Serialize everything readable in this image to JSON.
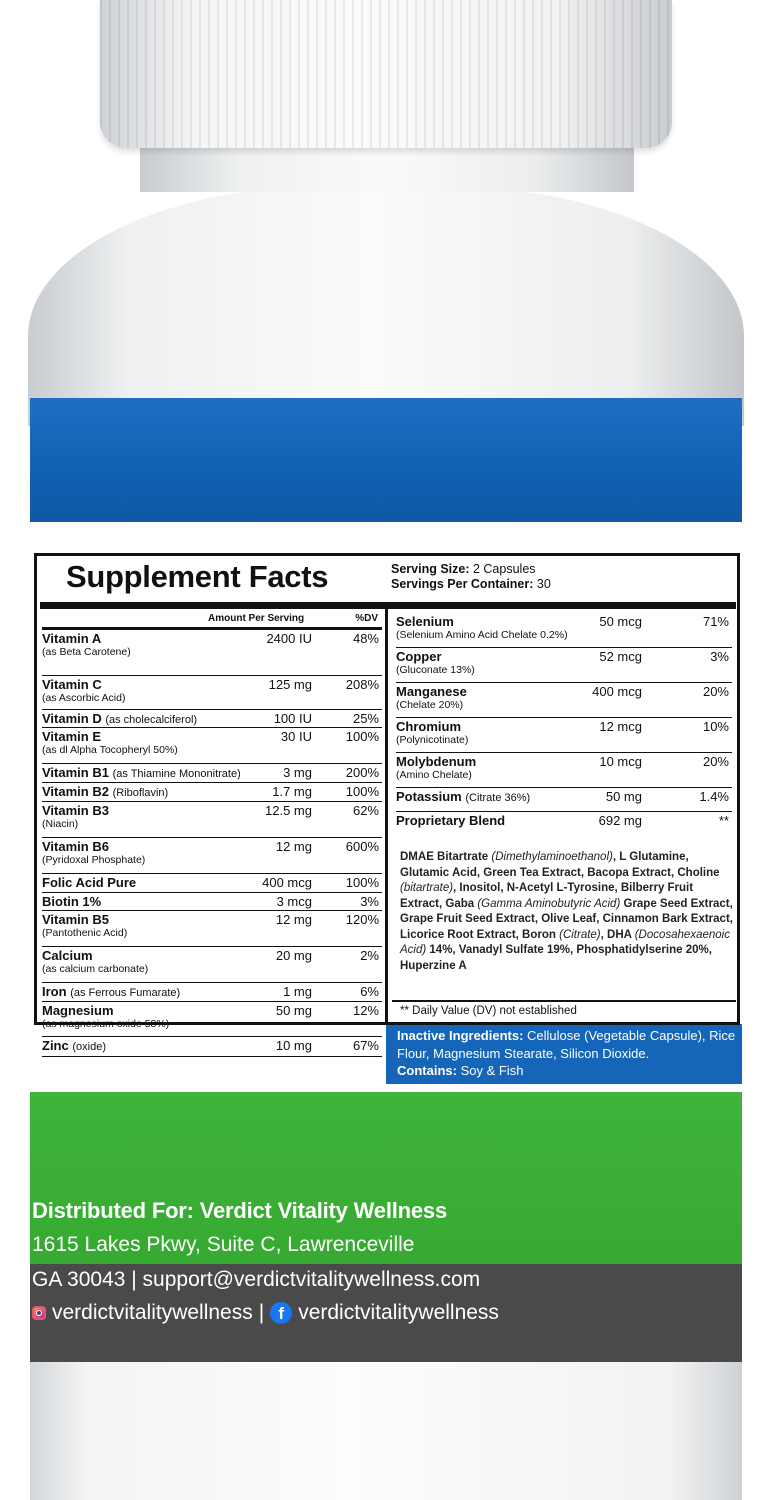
{
  "colors": {
    "blue_band": "#1565b8",
    "green_band": "#3fb43a",
    "dark_band": "#4a4a4a",
    "facebook_blue": "#1877f2"
  },
  "facts": {
    "title": "Supplement Facts",
    "serving_size_label": "Serving Size:",
    "serving_size": "2 Capsules",
    "servings_per_container_label": "Servings Per Container:",
    "servings_per_container": "30",
    "header_amount": "Amount Per Serving",
    "header_dv": "%DV",
    "left_rows": [
      {
        "name": "Vitamin A",
        "inline": "",
        "sub": "(as Beta Carotene)",
        "amount": "2400 IU",
        "dv": "48%"
      },
      {
        "name": "Vitamin C",
        "inline": "",
        "sub": "(as Ascorbic Acid)",
        "amount": "125 mg",
        "dv": "208%"
      },
      {
        "name": "Vitamin D",
        "inline": "(as cholecalciferol)",
        "sub": "",
        "amount": "100 IU",
        "dv": "25%"
      },
      {
        "name": "Vitamin E",
        "inline": "",
        "sub": "(as dl Alpha Tocopheryl 50%)",
        "amount": "30 IU",
        "dv": "100%"
      },
      {
        "name": "Vitamin B1",
        "inline": "(as Thiamine Mononitrate)",
        "sub": "",
        "amount": "3 mg",
        "dv": "200%"
      },
      {
        "name": "Vitamin B2",
        "inline": "(Riboflavin)",
        "sub": "",
        "amount": "1.7 mg",
        "dv": "100%"
      },
      {
        "name": "Vitamin B3",
        "inline": "",
        "sub": "(Niacin)",
        "amount": "12.5 mg",
        "dv": "62%"
      },
      {
        "name": "Vitamin B6",
        "inline": "",
        "sub": "(Pyridoxal Phosphate)",
        "amount": "12 mg",
        "dv": "600%"
      },
      {
        "name": "Folic Acid Pure",
        "inline": "",
        "sub": "",
        "amount": "400 mcg",
        "dv": "100%"
      },
      {
        "name": "Biotin 1%",
        "inline": "",
        "sub": "",
        "amount": "3 mcg",
        "dv": "3%"
      },
      {
        "name": "Vitamin B5",
        "inline": "",
        "sub": "(Pantothenic Acid)",
        "amount": "12 mg",
        "dv": "120%"
      },
      {
        "name": "Calcium",
        "inline": "",
        "sub": "(as calcium carbonate)",
        "amount": "20 mg",
        "dv": "2%"
      },
      {
        "name": "Iron",
        "inline": "(as Ferrous Fumarate)",
        "sub": "",
        "amount": "1 mg",
        "dv": "6%"
      },
      {
        "name": "Magnesium",
        "inline": "",
        "sub": "(as magnesium oxide 58%)",
        "amount": "50 mg",
        "dv": "12%"
      },
      {
        "name": "Zinc",
        "inline": "(oxide)",
        "sub": "",
        "amount": "10 mg",
        "dv": "67%"
      }
    ],
    "right_rows": [
      {
        "name": "Selenium",
        "inline": "",
        "sub": "(Selenium Amino Acid Chelate 0.2%)",
        "amount": "50 mcg",
        "dv": "71%"
      },
      {
        "name": "Copper",
        "inline": "",
        "sub": "(Gluconate 13%)",
        "amount": "52 mcg",
        "dv": "3%"
      },
      {
        "name": "Manganese",
        "inline": "",
        "sub": "(Chelate 20%)",
        "amount": "400 mcg",
        "dv": "20%"
      },
      {
        "name": "Chromium",
        "inline": "",
        "sub": "(Polynicotinate)",
        "amount": "12 mcg",
        "dv": "10%"
      },
      {
        "name": "Molybdenum",
        "inline": "",
        "sub": "(Amino Chelate)",
        "amount": "10 mcg",
        "dv": "20%"
      },
      {
        "name": "Potassium",
        "inline": "(Citrate 36%)",
        "sub": "",
        "amount": "50 mg",
        "dv": "1.4%"
      },
      {
        "name": "Proprietary Blend",
        "inline": "",
        "sub": "",
        "amount": "692 mg",
        "dv": "**"
      }
    ],
    "blend": {
      "p1": "DMAE Bitartrate ",
      "i1": "(Dimethylaminoethanol)",
      "p2": ", L Glutamine, Glutamic Acid, Green Tea Extract, Bacopa Extract, Choline ",
      "i2": "(bitartrate)",
      "p3": ", Inositol, N-Acetyl L-Tyrosine, Bilberry Fruit Extract, Gaba ",
      "i3": "(Gamma Aminobutyric Acid)",
      "p4": " Grape Seed Extract, Grape Fruit Seed Extract, Olive Leaf, Cinnamon Bark Extract, Licorice Root Extract, Boron ",
      "i4": "(Citrate)",
      "p5": ", DHA ",
      "i5": "(Docosahexaenoic Acid)",
      "p6": " 14%, Vanadyl Sulfate 19%, Phosphatidylserine 20%, Huperzine A"
    },
    "dv_note": "** Daily Value (DV) not established"
  },
  "inactive": {
    "label": "Inactive Ingredients:",
    "text": " Cellulose (Vegetable Capsule), Rice Flour, Magnesium Stearate, Silicon Dioxide.",
    "contains_label": "Contains:",
    "contains_text": " Soy & Fish"
  },
  "distributor": {
    "line1": "Distributed For: Verdict Vitality Wellness",
    "line2": "1615 Lakes Pkwy, Suite C, Lawrenceville",
    "line3": "GA 30043 | support@verdictvitalitywellness.com",
    "instagram_handle": "verdictvitalitywellness",
    "separator": "|",
    "facebook_handle": "verdictvitalitywellness",
    "icons": [
      "instagram-icon",
      "facebook-icon"
    ]
  }
}
